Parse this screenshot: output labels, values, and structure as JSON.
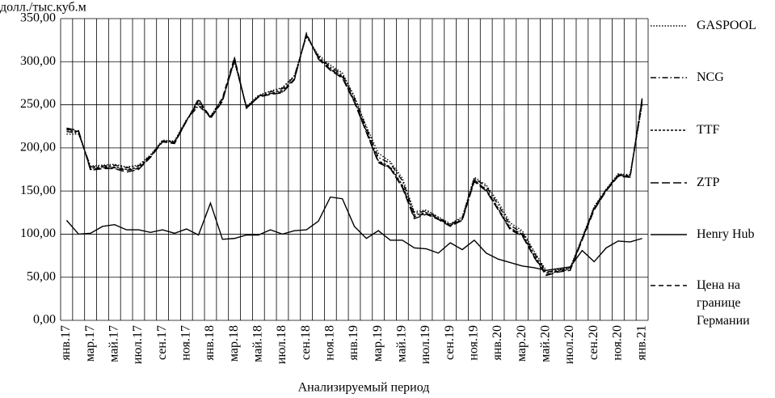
{
  "chart_data": {
    "type": "line",
    "y_axis_label": "долл./тыс.куб.м",
    "x_axis_label": "Анализируемый период",
    "categories": [
      "янв.17",
      null,
      "мар.17",
      null,
      "май.17",
      null,
      "июл.17",
      null,
      "сен.17",
      null,
      "ноя.17",
      null,
      "янв.18",
      null,
      "мар.18",
      null,
      "май.18",
      null,
      "июл.18",
      null,
      "сен.18",
      null,
      "ноя.18",
      null,
      "янв.19",
      null,
      "мар.19",
      null,
      "май.19",
      null,
      "июл.19",
      null,
      "сен.19",
      null,
      "ноя.19",
      null,
      "янв.20",
      null,
      "мар.20",
      null,
      "май.20",
      null,
      "июл.20",
      null,
      "сен.20",
      null,
      "ноя.20",
      null,
      "янв.21"
    ],
    "ylim": [
      0,
      350
    ],
    "yticks": [
      {
        "value": 0,
        "label": "0,00"
      },
      {
        "value": 50,
        "label": "50,00"
      },
      {
        "value": 100,
        "label": "100,00"
      },
      {
        "value": 150,
        "label": "150,00"
      },
      {
        "value": 200,
        "label": "200,00"
      },
      {
        "value": 250,
        "label": "250,00"
      },
      {
        "value": 300,
        "label": "300,00"
      },
      {
        "value": 350,
        "label": "350,00"
      }
    ],
    "grid": true,
    "legend": "right",
    "series": [
      {
        "name": "GASPOOL",
        "color": "#000000",
        "dash": "dotted",
        "values": [
          216,
          216,
          179,
          180,
          181,
          178,
          180,
          192,
          209,
          208,
          233,
          250,
          237,
          257,
          300,
          248,
          261,
          266,
          270,
          284,
          329,
          308,
          296,
          287,
          260,
          225,
          194,
          184,
          165,
          126,
          128,
          120,
          112,
          120,
          166,
          157,
          137,
          113,
          104,
          80,
          58,
          59,
          61,
          96,
          132,
          152,
          170,
          169,
          250
        ]
      },
      {
        "name": "NCG",
        "color": "#000000",
        "dash": "dash-dot",
        "values": [
          219,
          217,
          178,
          179,
          180,
          177,
          179,
          191,
          208,
          207,
          232,
          249,
          236,
          256,
          301,
          247,
          260,
          265,
          269,
          283,
          330,
          306,
          294,
          285,
          258,
          223,
          189,
          182,
          162,
          124,
          127,
          119,
          111,
          119,
          165,
          155,
          134,
          110,
          102,
          78,
          56,
          58,
          60,
          95,
          131,
          151,
          169,
          168,
          252
        ]
      },
      {
        "name": "TTF",
        "color": "#000000",
        "dash": "short-dash",
        "values": [
          221,
          218,
          176,
          178,
          178,
          175,
          177,
          190,
          208,
          207,
          232,
          253,
          235,
          255,
          302,
          247,
          260,
          263,
          267,
          280,
          331,
          305,
          292,
          283,
          255,
          220,
          185,
          178,
          157,
          122,
          125,
          118,
          110,
          117,
          162,
          152,
          130,
          107,
          100,
          75,
          55,
          58,
          60,
          95,
          130,
          152,
          168,
          168,
          255
        ]
      },
      {
        "name": "ZTP",
        "color": "#000000",
        "dash": "long-dash",
        "values": [
          223,
          220,
          174,
          176,
          176,
          172,
          175,
          189,
          207,
          205,
          231,
          257,
          234,
          254,
          304,
          246,
          259,
          262,
          264,
          279,
          333,
          303,
          290,
          281,
          253,
          218,
          183,
          176,
          154,
          118,
          123,
          117,
          109,
          116,
          161,
          150,
          128,
          105,
          98,
          73,
          52,
          56,
          58,
          93,
          128,
          150,
          167,
          166,
          258
        ]
      },
      {
        "name": "Henry Hub",
        "color": "#000000",
        "dash": "solid",
        "values": [
          116,
          100,
          101,
          109,
          111,
          105,
          105,
          102,
          105,
          101,
          106,
          99,
          136,
          94,
          95,
          99,
          99,
          105,
          100,
          104,
          105,
          115,
          143,
          141,
          109,
          95,
          104,
          93,
          93,
          84,
          83,
          78,
          90,
          82,
          93,
          78,
          71,
          67,
          63,
          61,
          58,
          60,
          62,
          81,
          68,
          84,
          92,
          91,
          95
        ]
      },
      {
        "name": "Цена на границе Германии",
        "color": "#000000",
        "dash": "dash",
        "values": [
          222,
          219,
          175,
          177,
          177,
          174,
          176,
          190,
          208,
          206,
          231,
          255,
          236,
          258,
          305,
          246,
          259,
          263,
          265,
          280,
          332,
          304,
          291,
          282,
          254,
          219,
          184,
          177,
          155,
          120,
          124,
          118,
          110,
          117,
          163,
          151,
          129,
          106,
          99,
          74,
          53,
          57,
          59,
          94,
          129,
          151,
          168,
          167,
          256
        ]
      }
    ]
  }
}
